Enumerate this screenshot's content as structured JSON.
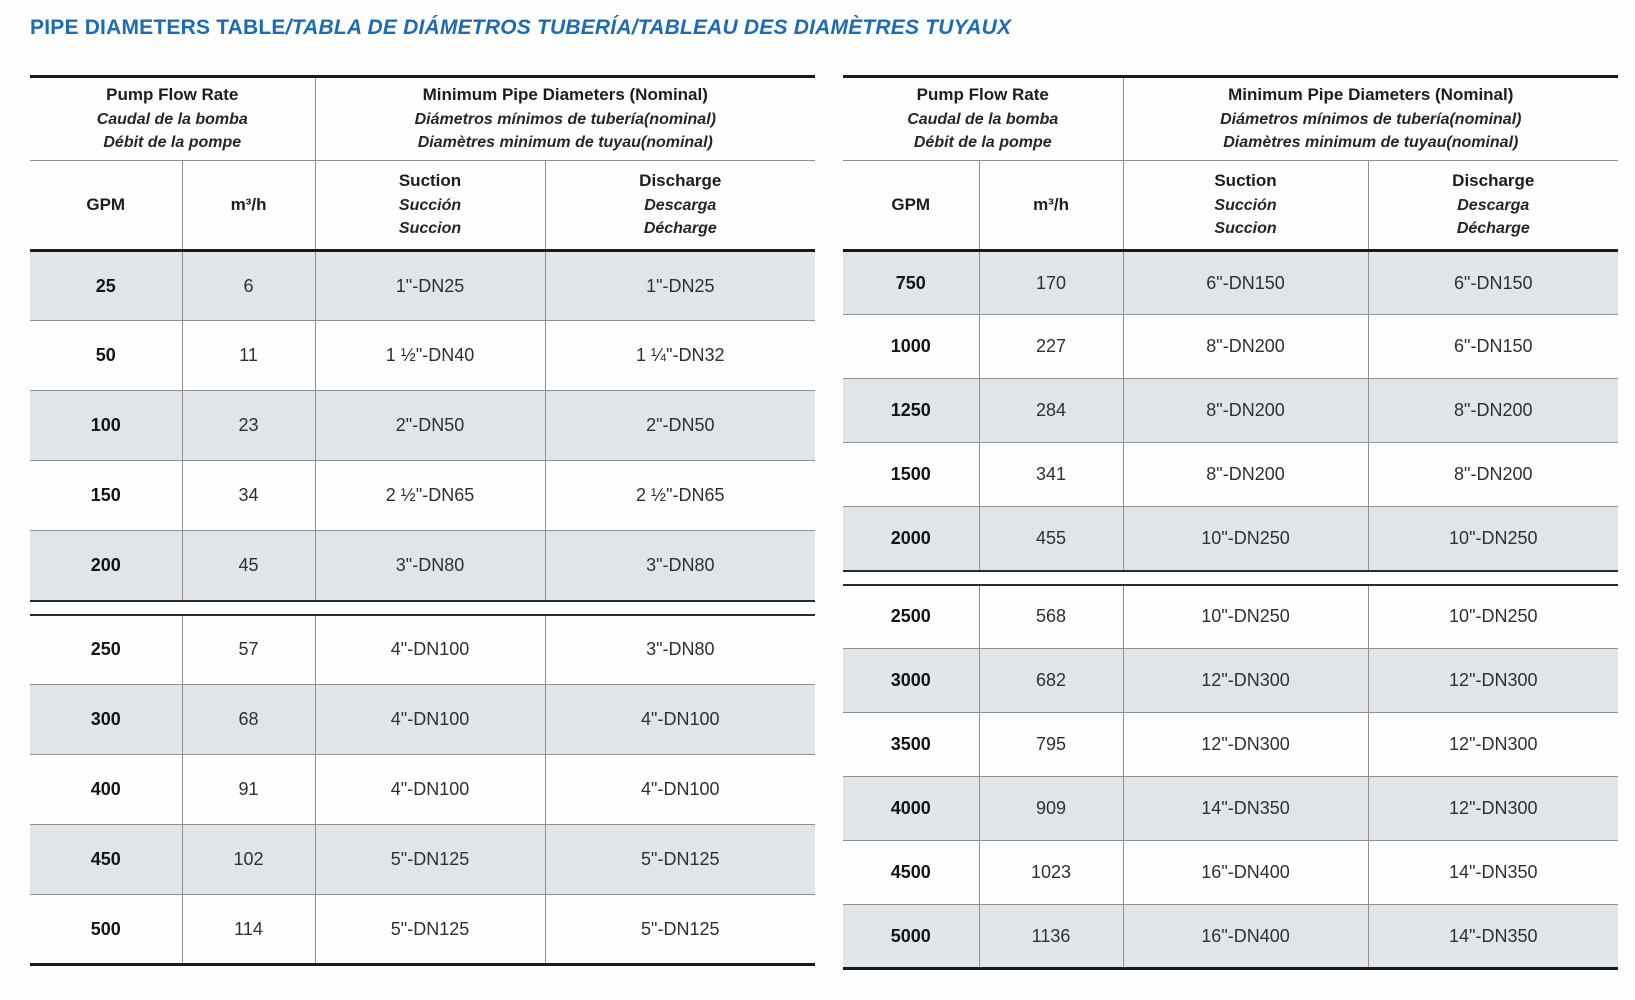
{
  "title": {
    "en": "PIPE DIAMETERS TABLE",
    "rest": "/TABLA DE DIÁMETROS TUBERÍA/TABLEAU DES DIAMÈTRES TUYAUX"
  },
  "header": {
    "flow_group": [
      "Pump Flow Rate",
      "Caudal de la bomba",
      "Débit de la pompe"
    ],
    "diameter_group": [
      "Minimum Pipe Diameters (Nominal)",
      "Diámetros mínimos de tubería(nominal)",
      "Diamètres minimum de tuyau(nominal)"
    ],
    "col_gpm": "GPM",
    "col_m3h": "m³/h",
    "suction": [
      "Suction",
      "Succión",
      "Succion"
    ],
    "discharge": [
      "Discharge",
      "Descarga",
      "Décharge"
    ]
  },
  "tables": {
    "left": {
      "sections": [
        [
          [
            "25",
            "6",
            "1\"-DN25",
            "1\"-DN25"
          ],
          [
            "50",
            "11",
            "1 ½\"-DN40",
            "1 ¼\"-DN32"
          ],
          [
            "100",
            "23",
            "2\"-DN50",
            "2\"-DN50"
          ],
          [
            "150",
            "34",
            "2 ½\"-DN65",
            "2 ½\"-DN65"
          ],
          [
            "200",
            "45",
            "3\"-DN80",
            "3\"-DN80"
          ]
        ],
        [
          [
            "250",
            "57",
            "4\"-DN100",
            "3\"-DN80"
          ],
          [
            "300",
            "68",
            "4\"-DN100",
            "4\"-DN100"
          ],
          [
            "400",
            "91",
            "4\"-DN100",
            "4\"-DN100"
          ],
          [
            "450",
            "102",
            "5\"-DN125",
            "5\"-DN125"
          ],
          [
            "500",
            "114",
            "5\"-DN125",
            "5\"-DN125"
          ]
        ]
      ]
    },
    "right": {
      "sections": [
        [
          [
            "750",
            "170",
            "6\"-DN150",
            "6\"-DN150"
          ],
          [
            "1000",
            "227",
            "8\"-DN200",
            "6\"-DN150"
          ],
          [
            "1250",
            "284",
            "8\"-DN200",
            "8\"-DN200"
          ],
          [
            "1500",
            "341",
            "8\"-DN200",
            "8\"-DN200"
          ],
          [
            "2000",
            "455",
            "10\"-DN250",
            "10\"-DN250"
          ]
        ],
        [
          [
            "2500",
            "568",
            "10\"-DN250",
            "10\"-DN250"
          ],
          [
            "3000",
            "682",
            "12\"-DN300",
            "12\"-DN300"
          ],
          [
            "3500",
            "795",
            "12\"-DN300",
            "12\"-DN300"
          ],
          [
            "4000",
            "909",
            "14\"-DN350",
            "12\"-DN300"
          ],
          [
            "4500",
            "1023",
            "16\"-DN400",
            "14\"-DN350"
          ],
          [
            "5000",
            "1136",
            "16\"-DN400",
            "14\"-DN350"
          ]
        ]
      ]
    }
  },
  "colors": {
    "accent_blue": "#1b6cb5",
    "row_shade": "#dfe5e9"
  }
}
